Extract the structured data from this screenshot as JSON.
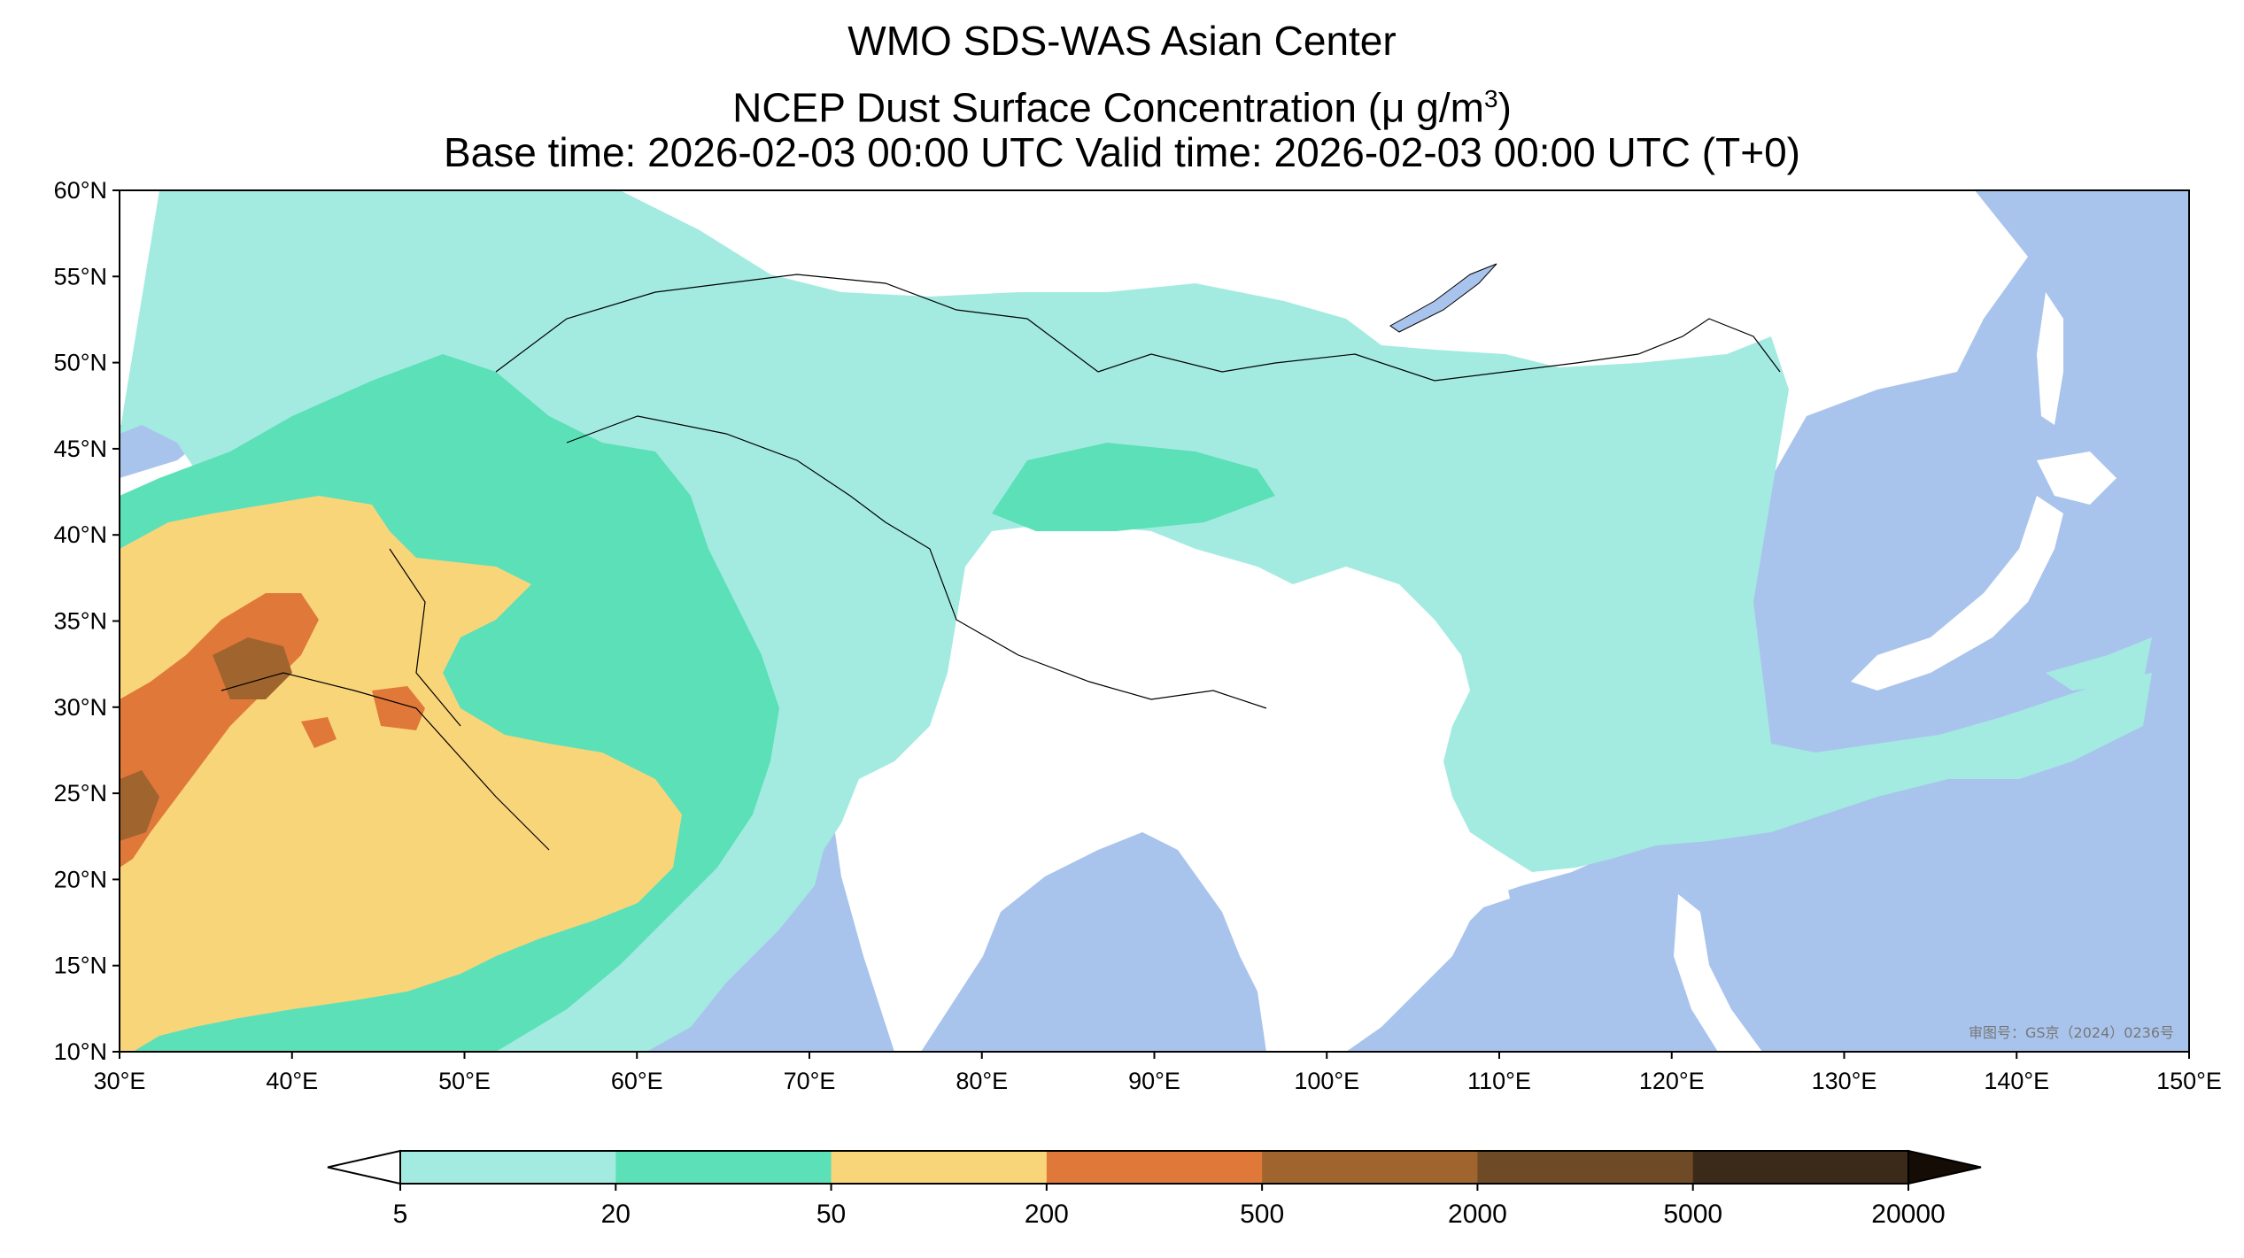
{
  "title": {
    "line1": "WMO SDS-WAS Asian Center",
    "line2": "NCEP Dust Surface Concentration (μ g/m",
    "line2_sup": "3",
    "line2_end": ")",
    "line3": "Base time: 2026-02-03 00:00 UTC Valid time: 2026-02-03 00:00 UTC (T+0)"
  },
  "map": {
    "lon_range": [
      30,
      150
    ],
    "lat_range": [
      10,
      60
    ],
    "lon_ticks": [
      "30°E",
      "40°E",
      "50°E",
      "60°E",
      "70°E",
      "80°E",
      "90°E",
      "100°E",
      "110°E",
      "120°E",
      "130°E",
      "140°E",
      "150°E"
    ],
    "lat_ticks": [
      "60°N",
      "55°N",
      "50°N",
      "45°N",
      "40°N",
      "35°N",
      "30°N",
      "25°N",
      "20°N",
      "15°N",
      "10°N"
    ],
    "ocean_color": "#a9c4ec",
    "land_color": "#ffffff",
    "approval_text": "审图号：GS京（2024）0236号"
  },
  "colorbar": {
    "levels": [
      "5",
      "20",
      "50",
      "200",
      "500",
      "2000",
      "5000",
      "20000"
    ],
    "colors": [
      "#a3ebe1",
      "#5ce0b8",
      "#f9d57a",
      "#e0783a",
      "#a0652e",
      "#6e4a26",
      "#3b2a1a"
    ],
    "under_color": "#ffffff",
    "over_color": "#140c05",
    "extend": "both"
  }
}
